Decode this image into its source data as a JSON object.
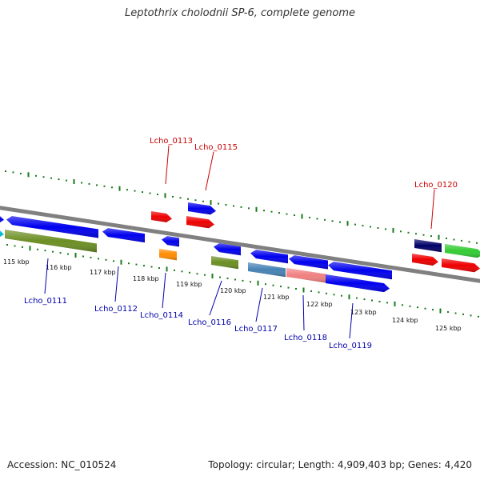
{
  "title": "Leptothrix cholodnii SP-6, complete genome",
  "footer": {
    "accession": "Accession: NC_010524",
    "summary": "Topology: circular; Length: 4,909,403 bp; Genes: 4,420"
  },
  "scale_labels": [
    "115 kbp",
    "116 kbp",
    "117 kbp",
    "118 kbp",
    "119 kbp",
    "120 kbp",
    "121 kbp",
    "122 kbp",
    "123 kbp",
    "124 kbp",
    "125 kbp"
  ],
  "gene_labels": {
    "top": [
      "Lcho_0113",
      "Lcho_0115",
      "Lcho_0120"
    ],
    "bottom": [
      "Lcho_0111",
      "Lcho_0112",
      "Lcho_0114",
      "Lcho_0116",
      "Lcho_0117",
      "Lcho_0118",
      "Lcho_0119"
    ]
  },
  "colors": {
    "backbone": "#808080",
    "tick": "#1a7a1a",
    "top_label": "#cc0000",
    "bottom_label": "#0000aa",
    "feature_blue": "#0000ee",
    "feature_red": "#ee0000",
    "feature_olive": "#6b8e23",
    "feature_orange": "#ff8c00",
    "feature_steel": "#4682b4",
    "feature_salmon": "#f08080",
    "feature_navy": "#000066",
    "feature_green": "#33cc33",
    "feature_cyan": "#00bcd4"
  }
}
